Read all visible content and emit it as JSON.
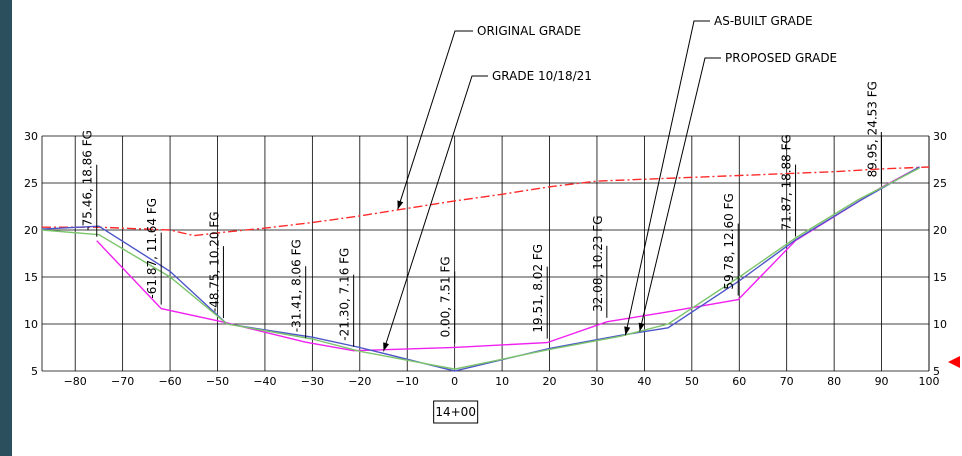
{
  "chart_data": {
    "type": "line",
    "xlim": [
      -87,
      100
    ],
    "ylim": [
      5,
      30
    ],
    "x_ticks": [
      -80,
      -70,
      -60,
      -50,
      -40,
      -30,
      -20,
      -10,
      0,
      10,
      20,
      30,
      40,
      50,
      60,
      70,
      80,
      90,
      100
    ],
    "y_ticks": [
      5,
      10,
      15,
      20,
      25,
      30
    ],
    "grid": true,
    "station_label": "14+00",
    "series": [
      {
        "name": "ORIGINAL GRADE",
        "color": "#ff2a2a",
        "dashed": true,
        "x": [
          -87,
          -75,
          -60,
          -55,
          -48,
          -40,
          -30,
          -20,
          -10,
          0,
          10,
          20,
          30,
          45,
          60,
          70,
          80,
          90,
          100
        ],
        "y": [
          20.3,
          20.3,
          20.0,
          19.4,
          19.8,
          20.2,
          20.8,
          21.5,
          22.3,
          23.1,
          23.8,
          24.6,
          25.2,
          25.5,
          25.8,
          26.0,
          26.2,
          26.5,
          26.7
        ]
      },
      {
        "name": "GRADE 10/18/21",
        "color": "#f020f0",
        "dashed": false,
        "x": [
          -75.46,
          -61.87,
          -48.75,
          -31.41,
          -21.3,
          0,
          19.51,
          32.08,
          45,
          59.78,
          71.87,
          89.95,
          98
        ],
        "y": [
          18.86,
          11.64,
          10.2,
          8.06,
          7.16,
          7.51,
          8.02,
          10.23,
          11.3,
          12.6,
          18.88,
          24.53,
          26.7
        ]
      },
      {
        "name": "AS-BUILT GRADE",
        "color": "#4d55c8",
        "dashed": false,
        "x": [
          -87,
          -75,
          -60,
          -48,
          -30,
          -20,
          0,
          20,
          35,
          45,
          60,
          72,
          85,
          98
        ],
        "y": [
          20.1,
          20.4,
          15.6,
          10.0,
          8.6,
          7.5,
          5.0,
          7.4,
          8.8,
          9.6,
          14.6,
          19.0,
          23.0,
          26.7
        ]
      },
      {
        "name": "PROPOSED GRADE",
        "color": "#7cc46b",
        "dashed": false,
        "x": [
          -87,
          -75,
          -60,
          -48,
          -30,
          -20,
          0,
          20,
          35,
          45,
          60,
          72,
          85,
          98
        ],
        "y": [
          20.0,
          19.5,
          15.0,
          10.0,
          8.4,
          7.1,
          5.2,
          7.3,
          8.7,
          10.0,
          15.0,
          19.2,
          23.2,
          26.6
        ]
      }
    ],
    "points": [
      {
        "label": "-75.46, 18.86 FG",
        "x": -75.46,
        "y": 18.86
      },
      {
        "label": "-61.87, 11.64 FG",
        "x": -61.87,
        "y": 11.64
      },
      {
        "label": "-48.75, 10.20 FG",
        "x": -48.75,
        "y": 10.2
      },
      {
        "label": "-31.41, 8.06 FG",
        "x": -31.41,
        "y": 8.06
      },
      {
        "label": "-21.30, 7.16 FG",
        "x": -21.3,
        "y": 7.16
      },
      {
        "label": "0.00, 7.51 FG",
        "x": 0,
        "y": 7.51
      },
      {
        "label": "19.51, 8.02 FG",
        "x": 19.51,
        "y": 8.02
      },
      {
        "label": "32.08, 10.23 FG",
        "x": 32.08,
        "y": 10.23
      },
      {
        "label": "59.78, 12.60 FG",
        "x": 59.78,
        "y": 12.6
      },
      {
        "label": "71.87, 18.88 FG",
        "x": 71.87,
        "y": 18.88
      },
      {
        "label": "89.95, 24.53 FG",
        "x": 89.95,
        "y": 24.53
      }
    ],
    "callouts": [
      {
        "text": "ORIGINAL GRADE",
        "target_x": -12,
        "target_y": 22.2
      },
      {
        "text": "GRADE 10/18/21",
        "target_x": -15,
        "target_y": 7.1
      },
      {
        "text": "AS-BUILT GRADE",
        "target_x": 36,
        "target_y": 8.8
      },
      {
        "text": "PROPOSED GRADE",
        "target_x": 39,
        "target_y": 9.2
      }
    ]
  }
}
